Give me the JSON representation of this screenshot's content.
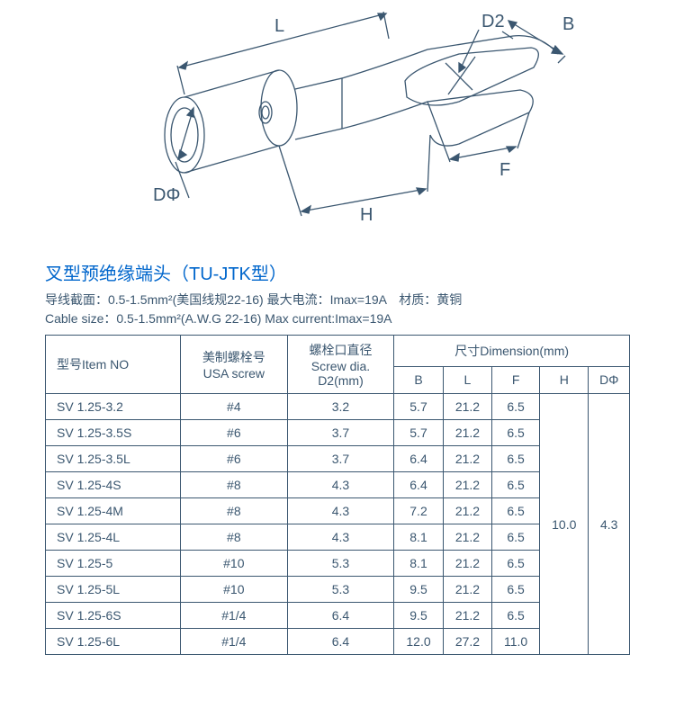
{
  "diagram": {
    "labels": {
      "L": "L",
      "B": "B",
      "D2": "D2",
      "F": "F",
      "H": "H",
      "Dphi": "DΦ"
    },
    "stroke": "#3b5770",
    "stroke_width": 1.2
  },
  "title": "叉型预绝缘端头（TU-JTK型）",
  "spec_line1": "导线截面：0.5-1.5mm²(美国线规22-16) 最大电流：Imax=19A　材质：黄铜",
  "spec_line2": "Cable size：0.5-1.5mm²(A.W.G 22-16) Max current:Imax=19A",
  "table": {
    "headers": {
      "item": "型号Item NO",
      "usa_screw_cn": "美制螺栓号",
      "usa_screw_en": "USA screw",
      "screw_dia_cn": "螺栓口直径",
      "screw_dia_en": "Screw dia.",
      "screw_dia_unit": "D2(mm)",
      "dimension": "尺寸Dimension(mm)",
      "B": "B",
      "L": "L",
      "F": "F",
      "H": "H",
      "Dphi": "DΦ"
    },
    "rows": [
      {
        "item": "SV  1.25-3.2",
        "screw": "#4",
        "d2": "3.2",
        "B": "5.7",
        "L": "21.2",
        "F": "6.5"
      },
      {
        "item": "SV  1.25-3.5S",
        "screw": "#6",
        "d2": "3.7",
        "B": "5.7",
        "L": "21.2",
        "F": "6.5"
      },
      {
        "item": "SV  1.25-3.5L",
        "screw": "#6",
        "d2": "3.7",
        "B": "6.4",
        "L": "21.2",
        "F": "6.5"
      },
      {
        "item": "SV  1.25-4S",
        "screw": "#8",
        "d2": "4.3",
        "B": "6.4",
        "L": "21.2",
        "F": "6.5"
      },
      {
        "item": "SV  1.25-4M",
        "screw": "#8",
        "d2": "4.3",
        "B": "7.2",
        "L": "21.2",
        "F": "6.5"
      },
      {
        "item": "SV  1.25-4L",
        "screw": "#8",
        "d2": "4.3",
        "B": "8.1",
        "L": "21.2",
        "F": "6.5"
      },
      {
        "item": "SV  1.25-5",
        "screw": "#10",
        "d2": "5.3",
        "B": "8.1",
        "L": "21.2",
        "F": "6.5"
      },
      {
        "item": "SV  1.25-5L",
        "screw": "#10",
        "d2": "5.3",
        "B": "9.5",
        "L": "21.2",
        "F": "6.5"
      },
      {
        "item": "SV  1.25-6S",
        "screw": "#1/4",
        "d2": "6.4",
        "B": "9.5",
        "L": "21.2",
        "F": "6.5"
      },
      {
        "item": "SV  1.25-6L",
        "screw": "#1/4",
        "d2": "6.4",
        "B": "12.0",
        "L": "27.2",
        "F": "11.0"
      }
    ],
    "merged": {
      "H": "10.0",
      "Dphi": "4.3"
    }
  }
}
